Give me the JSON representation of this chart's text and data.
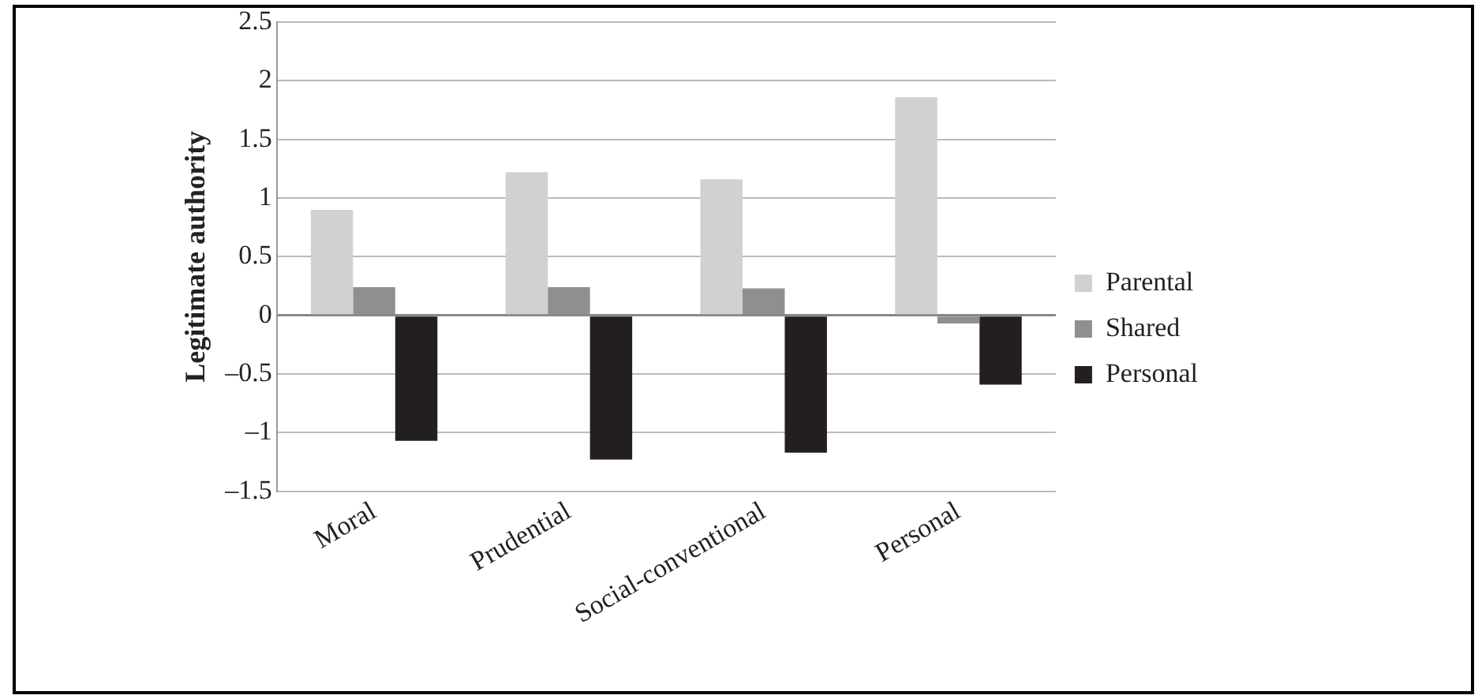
{
  "chart_data": {
    "type": "bar",
    "ylabel": "Legitimate authority",
    "categories": [
      "Moral",
      "Prudential",
      "Social-conventional",
      "Personal"
    ],
    "series": [
      {
        "name": "Parental",
        "color": "#d0d1d3",
        "values": [
          0.9,
          1.22,
          1.16,
          1.86
        ]
      },
      {
        "name": "Shared",
        "color": "#8e8f91",
        "values": [
          0.24,
          0.24,
          0.23,
          -0.07
        ]
      },
      {
        "name": "Personal",
        "color": "#231f20",
        "values": [
          -1.07,
          -1.23,
          -1.17,
          -0.59
        ]
      }
    ],
    "ylim": [
      -1.5,
      2.5
    ],
    "yticks": [
      {
        "value": -1.5,
        "label": "–1.5"
      },
      {
        "value": -1,
        "label": "–1"
      },
      {
        "value": -0.5,
        "label": "–0.5"
      },
      0,
      0.5,
      1,
      1.5,
      2,
      2.5
    ],
    "grid": "y",
    "legend": "right"
  }
}
